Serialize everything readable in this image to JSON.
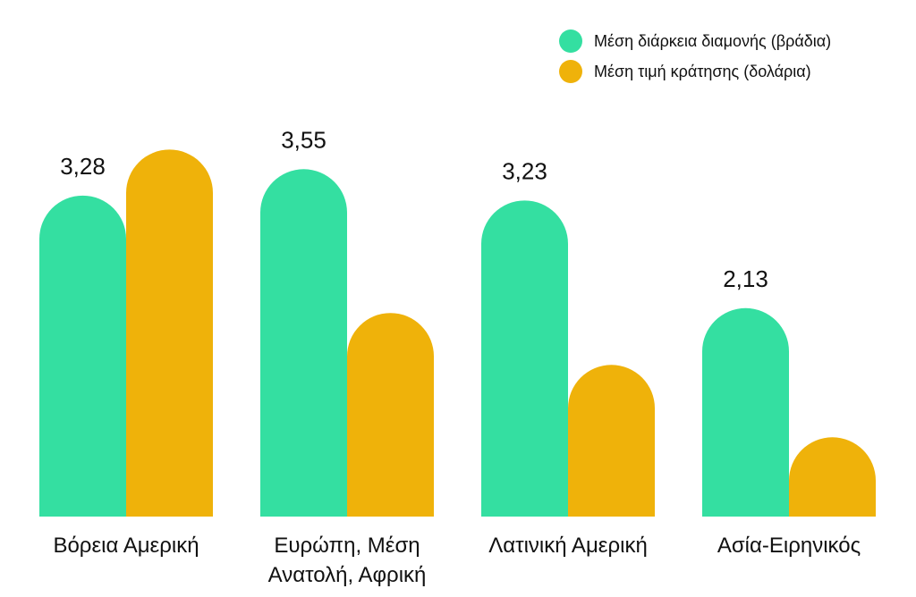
{
  "chart_data": {
    "type": "bar",
    "categories": [
      [
        "Βόρεια Αμερική"
      ],
      [
        "Ευρώπη, Μέση",
        "Ανατολή, Αφρική"
      ],
      [
        "Λατινική Αμερική"
      ],
      [
        "Ασία-Ειρηνικός"
      ]
    ],
    "series": [
      {
        "name": "Μέση διάρκεια διαμονής (βράδια)",
        "color": "#34DFA1",
        "values": [
          3.28,
          3.55,
          3.23,
          2.13
        ],
        "value_labels": [
          "3,28",
          "3,55",
          "3,23",
          "2,13"
        ]
      },
      {
        "name": "Μέση τιμή κράτησης (δολάρια)",
        "color": "#EFB20A",
        "values": [
          3.75,
          2.08,
          1.55,
          0.81
        ],
        "value_labels": []
      }
    ],
    "legend_position": "top-right",
    "grid": false,
    "ylim": [
      0,
      4.0
    ]
  }
}
